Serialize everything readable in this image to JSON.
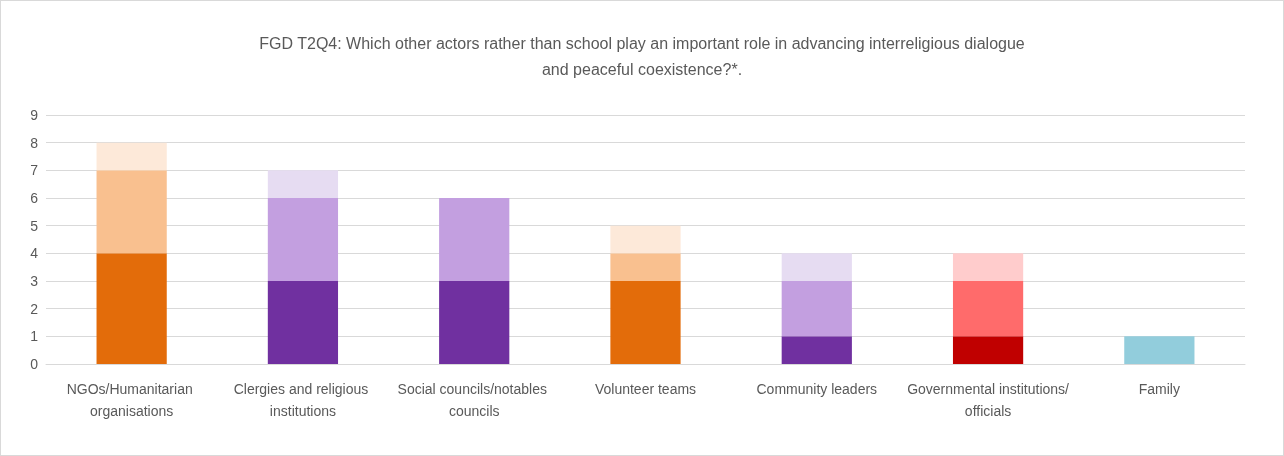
{
  "chart_data": {
    "type": "bar",
    "title": "FGD T2Q4: Which other actors rather than school play an important role in advancing interreligious dialogue\nand peaceful coexistence?*.",
    "categories": [
      "NGOs/Humanitarian organisations",
      "Clergies and religious institutions",
      "Social councils/notables councils",
      "Volunteer teams",
      "Community leaders",
      "Governmental institutions/officials",
      "Family"
    ],
    "stacked": true,
    "series": [
      {
        "values": [
          4,
          3,
          3,
          3,
          1,
          1,
          1
        ],
        "colors": [
          "#e36c0a",
          "#7030a0",
          "#7030a0",
          "#e36c0a",
          "#7030a0",
          "#c00000",
          "#92cddc"
        ]
      },
      {
        "values": [
          3,
          3,
          3,
          1,
          2,
          2,
          null
        ],
        "colors": [
          "#f9c08f",
          "#c39fe0",
          "#c39fe0",
          "#f9c08f",
          "#c39fe0",
          "#ff6b6b",
          null
        ]
      },
      {
        "values": [
          1,
          1,
          null,
          1,
          1,
          1,
          null
        ],
        "colors": [
          "#fde9d9",
          "#e6dcf2",
          null,
          "#fde9d9",
          "#e6dcf2",
          "#ffcccc",
          null
        ]
      }
    ],
    "ylim": [
      0,
      9
    ],
    "yticks": [
      0,
      1,
      2,
      3,
      4,
      5,
      6,
      7,
      8,
      9
    ],
    "grid": "y"
  }
}
